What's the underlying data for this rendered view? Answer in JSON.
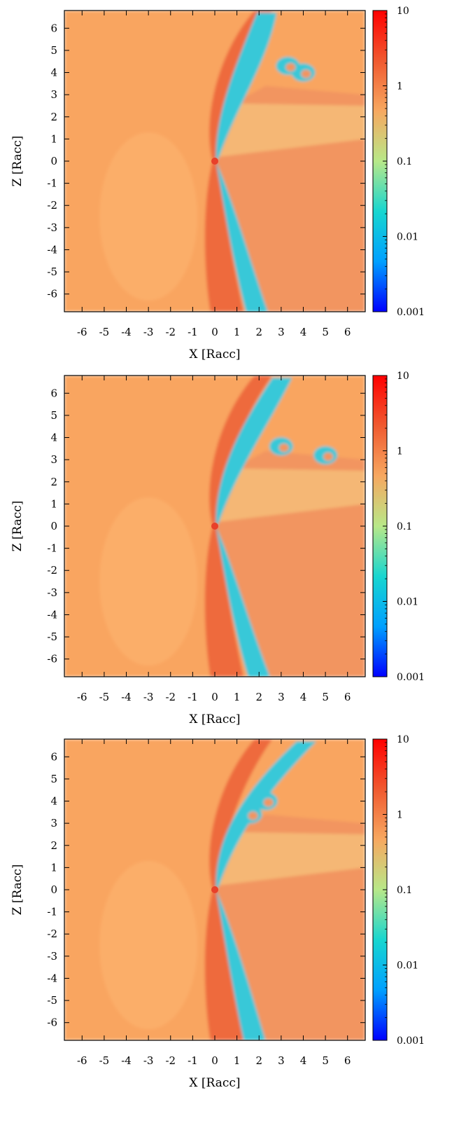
{
  "chart_data": [
    {
      "type": "heatmap",
      "panel": "top",
      "xlabel": "X [Racc]",
      "ylabel": "Z [Racc]",
      "xlim": [
        -6.8,
        6.8
      ],
      "ylim": [
        -6.8,
        6.8
      ],
      "x_ticks": [
        "-6",
        "-5",
        "-4",
        "-3",
        "-2",
        "-1",
        "0",
        "1",
        "2",
        "3",
        "4",
        "5",
        "6"
      ],
      "y_ticks": [
        "6",
        "5",
        "4",
        "3",
        "2",
        "1",
        "0",
        "-1",
        "-2",
        "-3",
        "-4",
        "-5",
        "-6"
      ],
      "colorbar": {
        "scale": "log",
        "range": [
          0.001,
          10
        ],
        "tick_labels": [
          "10",
          "1",
          "0.1",
          "0.01",
          "0.001"
        ],
        "colors": [
          "#0000ff",
          "#00a0ff",
          "#18d6d0",
          "#b8e888",
          "#f7a860",
          "#f05a30",
          "#ff0000"
        ]
      },
      "features": {
        "background_color": "#f9a561",
        "bow_shock_color": "#ee6a3c",
        "wake_color": "#38c8d8",
        "downstream_color": "#f29560",
        "lower_wake_end_x": 2.1,
        "upper_jet_top": [
          2.3,
          6.7
        ],
        "vortices": [
          {
            "x": 4.0,
            "z": 4.0
          },
          {
            "x": 3.3,
            "z": 4.3
          }
        ]
      }
    },
    {
      "type": "heatmap",
      "panel": "middle",
      "xlabel": "X [Racc]",
      "ylabel": "Z [Racc]",
      "xlim": [
        -6.8,
        6.8
      ],
      "ylim": [
        -6.8,
        6.8
      ],
      "x_ticks": [
        "-6",
        "-5",
        "-4",
        "-3",
        "-2",
        "-1",
        "0",
        "1",
        "2",
        "3",
        "4",
        "5",
        "6"
      ],
      "y_ticks": [
        "6",
        "5",
        "4",
        "3",
        "2",
        "1",
        "0",
        "-1",
        "-2",
        "-3",
        "-4",
        "-5",
        "-6"
      ],
      "colorbar": {
        "scale": "log",
        "range": [
          0.001,
          10
        ],
        "tick_labels": [
          "10",
          "1",
          "0.1",
          "0.01",
          "0.001"
        ],
        "colors": [
          "#0000ff",
          "#00a0ff",
          "#18d6d0",
          "#b8e888",
          "#f7a860",
          "#f05a30",
          "#ff0000"
        ]
      },
      "features": {
        "background_color": "#f9a561",
        "bow_shock_color": "#ee6a3c",
        "wake_color": "#38c8d8",
        "downstream_color": "#f29560",
        "lower_wake_end_x": 2.2,
        "upper_jet_top": [
          3.0,
          6.7
        ],
        "vortices": [
          {
            "x": 3.0,
            "z": 3.6
          },
          {
            "x": 5.0,
            "z": 3.2
          }
        ]
      }
    },
    {
      "type": "heatmap",
      "panel": "bottom",
      "xlabel": "X [Racc]",
      "ylabel": "Z [Racc]",
      "xlim": [
        -6.8,
        6.8
      ],
      "ylim": [
        -6.8,
        6.8
      ],
      "x_ticks": [
        "-6",
        "-5",
        "-4",
        "-3",
        "-2",
        "-1",
        "0",
        "1",
        "2",
        "3",
        "4",
        "5",
        "6"
      ],
      "y_ticks": [
        "6",
        "5",
        "4",
        "3",
        "2",
        "1",
        "0",
        "-1",
        "-2",
        "-3",
        "-4",
        "-5",
        "-6"
      ],
      "colorbar": {
        "scale": "log",
        "range": [
          0.001,
          10
        ],
        "tick_labels": [
          "10",
          "1",
          "0.1",
          "0.01",
          "0.001"
        ],
        "colors": [
          "#0000ff",
          "#00a0ff",
          "#18d6d0",
          "#b8e888",
          "#f7a860",
          "#f05a30",
          "#ff0000"
        ]
      },
      "features": {
        "background_color": "#f9a561",
        "bow_shock_color": "#ee6a3c",
        "wake_color": "#38c8d8",
        "downstream_color": "#f29560",
        "lower_wake_end_x": 2.0,
        "upper_jet_top": [
          4.1,
          6.7
        ],
        "vortices": [
          {
            "x": 2.3,
            "z": 4.0
          },
          {
            "x": 1.6,
            "z": 3.4
          }
        ]
      }
    }
  ]
}
